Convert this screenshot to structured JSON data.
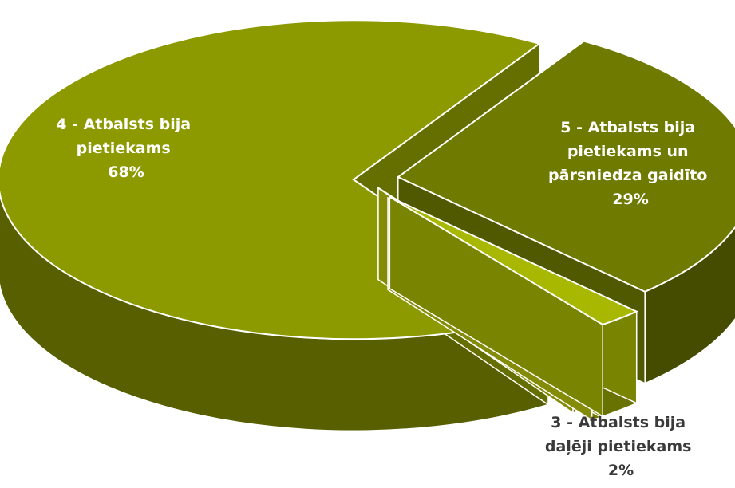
{
  "chart_data": {
    "type": "pie",
    "style": "3d-exploded",
    "slices": [
      {
        "label": [
          "4 - Atbalsts bija",
          "pietiekams"
        ],
        "pct_label": "68%",
        "value": 68,
        "color": "#8c9a00"
      },
      {
        "label": [
          "5 - Atbalsts bija",
          "pietiekams un",
          "pārsniedza gaidīto"
        ],
        "pct_label": "29%",
        "value": 29,
        "color": "#6f7a00"
      },
      {
        "label": [
          "3 - Atbalsts bija",
          "daļēji pietiekams"
        ],
        "pct_label": "2%",
        "value": 2,
        "color": "#a8b800"
      },
      {
        "label": [],
        "pct_label": "",
        "value": 0.5,
        "color": "#b7c30a"
      },
      {
        "label": [],
        "pct_label": "",
        "value": 0.5,
        "color": "#b7c30a"
      }
    ],
    "legend": "none",
    "data_labels": "on-slice"
  }
}
